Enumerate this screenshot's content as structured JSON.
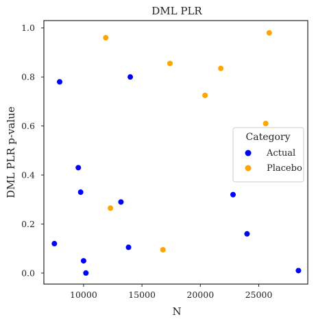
{
  "chart_data": {
    "type": "scatter",
    "title": "DML PLR",
    "xlabel": "N",
    "ylabel": "DML PLR p-value",
    "xlim": [
      6600,
      29200
    ],
    "ylim": [
      -0.045,
      1.03
    ],
    "xticks": [
      10000,
      15000,
      20000,
      25000
    ],
    "yticks": [
      0.0,
      0.2,
      0.4,
      0.6,
      0.8,
      1.0
    ],
    "xtick_labels": [
      "10000",
      "15000",
      "20000",
      "25000"
    ],
    "ytick_labels": [
      "0.0",
      "0.2",
      "0.4",
      "0.6",
      "0.8",
      "1.0"
    ],
    "grid": false,
    "legend": {
      "title": "Category",
      "placement": "center-right",
      "entries": [
        {
          "label": "Actual",
          "color": "#0000ff"
        },
        {
          "label": "Placebo",
          "color": "#ffa500"
        }
      ]
    },
    "series": [
      {
        "name": "Actual",
        "color": "#0000ff",
        "points": [
          [
            7950,
            0.78
          ],
          [
            14000,
            0.8
          ],
          [
            9550,
            0.43
          ],
          [
            9750,
            0.33
          ],
          [
            13200,
            0.29
          ],
          [
            7500,
            0.12
          ],
          [
            13850,
            0.105
          ],
          [
            10000,
            0.05
          ],
          [
            10200,
            0.0
          ],
          [
            22800,
            0.32
          ],
          [
            24000,
            0.16
          ],
          [
            28400,
            0.01
          ]
        ]
      },
      {
        "name": "Placebo",
        "color": "#ffa500",
        "points": [
          [
            11900,
            0.96
          ],
          [
            17400,
            0.855
          ],
          [
            25900,
            0.98
          ],
          [
            21750,
            0.835
          ],
          [
            20400,
            0.725
          ],
          [
            25600,
            0.61
          ],
          [
            12300,
            0.265
          ],
          [
            16800,
            0.095
          ]
        ]
      }
    ]
  }
}
